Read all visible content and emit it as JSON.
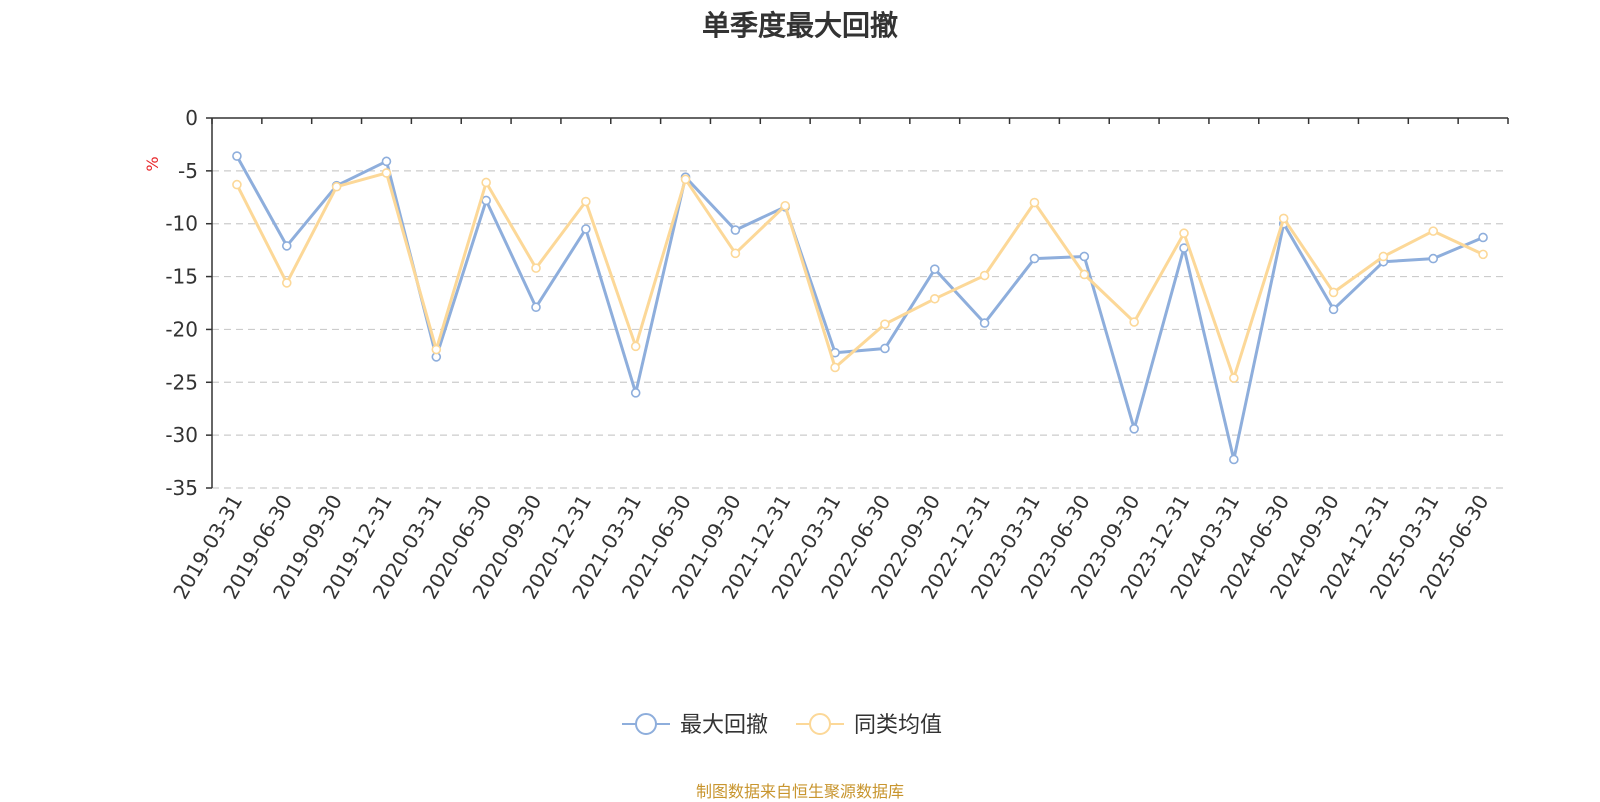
{
  "source": "制图数据来自恒生聚源数据库",
  "colors": {
    "series1": "#8eaedc",
    "series2": "#fcd898",
    "ylabel": "#e8262a",
    "grid": "#cccccc",
    "axis": "#333333",
    "source": "#c8952e"
  },
  "chart_data": {
    "type": "line",
    "title": "单季度最大回撤",
    "ylabel": "%",
    "xlabel": "",
    "ylim": [
      -35,
      0
    ],
    "yticks": [
      0,
      -5,
      -10,
      -15,
      -20,
      -25,
      -30,
      -35
    ],
    "grid": "horizontal-dashed",
    "legend_position": "bottom-center",
    "categories": [
      "2019-03-31",
      "2019-06-30",
      "2019-09-30",
      "2019-12-31",
      "2020-03-31",
      "2020-06-30",
      "2020-09-30",
      "2020-12-31",
      "2021-03-31",
      "2021-06-30",
      "2021-09-30",
      "2021-12-31",
      "2022-03-31",
      "2022-06-30",
      "2022-09-30",
      "2022-12-31",
      "2023-03-31",
      "2023-06-30",
      "2023-09-30",
      "2023-12-31",
      "2024-03-31",
      "2024-06-30",
      "2024-09-30",
      "2024-12-31",
      "2025-03-31",
      "2025-06-30"
    ],
    "series": [
      {
        "name": "最大回撤",
        "values": [
          -3.6,
          -12.1,
          -6.4,
          -4.1,
          -22.6,
          -7.8,
          -17.9,
          -10.5,
          -26.0,
          -5.6,
          -10.6,
          -8.4,
          -22.2,
          -21.8,
          -14.3,
          -19.4,
          -13.3,
          -13.1,
          -29.4,
          -12.3,
          -32.3,
          -10.0,
          -18.1,
          -13.6,
          -13.3,
          -11.3
        ]
      },
      {
        "name": "同类均值",
        "values": [
          -6.3,
          -15.6,
          -6.5,
          -5.2,
          -21.9,
          -6.1,
          -14.2,
          -7.9,
          -21.6,
          -5.8,
          -12.8,
          -8.3,
          -23.6,
          -19.5,
          -17.1,
          -14.9,
          -8.0,
          -14.8,
          -19.3,
          -10.9,
          -24.6,
          -9.5,
          -16.5,
          -13.1,
          -10.7,
          -12.9
        ]
      }
    ]
  }
}
